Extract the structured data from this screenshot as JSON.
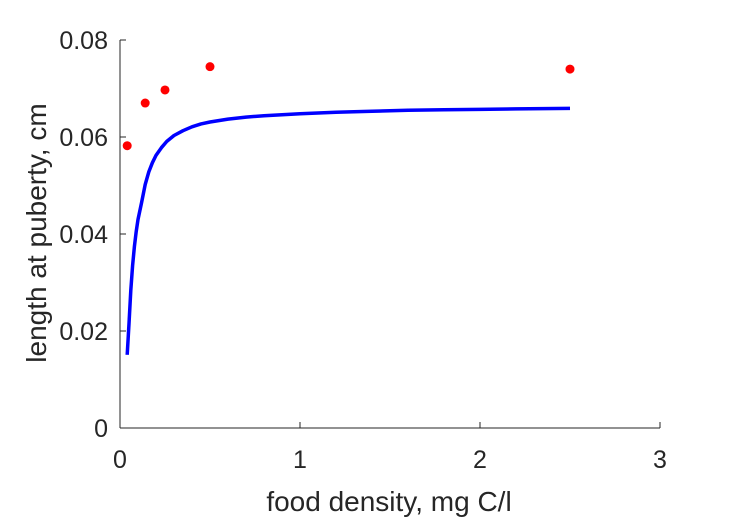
{
  "chart_data": {
    "type": "scatter",
    "xlabel": "food density, mg C/l",
    "ylabel": "length at puberty, cm",
    "xlim": [
      0,
      3
    ],
    "ylim": [
      0,
      0.08
    ],
    "xticks": [
      0,
      1,
      2,
      3
    ],
    "xtick_labels": [
      "0",
      "1",
      "2",
      "3"
    ],
    "yticks": [
      0,
      0.02,
      0.04,
      0.06,
      0.08
    ],
    "ytick_labels": [
      "0",
      "0.02",
      "0.04",
      "0.06",
      "0.08"
    ],
    "grid": false,
    "box": false,
    "series": [
      {
        "type": "scatter",
        "color": "#ff0000",
        "x": [
          0.04,
          0.14,
          0.25,
          0.5,
          2.5
        ],
        "y": [
          0.0582,
          0.067,
          0.0697,
          0.0745,
          0.074
        ]
      },
      {
        "type": "line",
        "color": "#0000ff",
        "x": [
          0.04,
          0.05,
          0.06,
          0.07,
          0.08,
          0.09,
          0.1,
          0.12,
          0.14,
          0.16,
          0.18,
          0.2,
          0.23,
          0.26,
          0.3,
          0.35,
          0.4,
          0.45,
          0.5,
          0.6,
          0.7,
          0.8,
          0.9,
          1.0,
          1.2,
          1.4,
          1.6,
          1.8,
          2.0,
          2.2,
          2.5
        ],
        "y": [
          0.0151,
          0.0215,
          0.0284,
          0.0335,
          0.0374,
          0.0405,
          0.043,
          0.0465,
          0.0502,
          0.0528,
          0.0547,
          0.0562,
          0.0578,
          0.0591,
          0.0603,
          0.0613,
          0.0621,
          0.0627,
          0.0631,
          0.0637,
          0.0641,
          0.0644,
          0.0646,
          0.0648,
          0.0651,
          0.0653,
          0.0655,
          0.0656,
          0.0657,
          0.0658,
          0.0659
        ]
      }
    ]
  }
}
